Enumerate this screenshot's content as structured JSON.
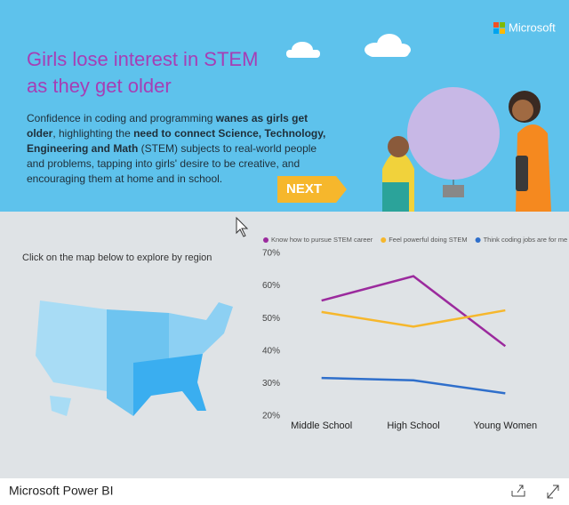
{
  "brand": "Microsoft",
  "title_lines": [
    "Girls lose interest in STEM",
    "as they get older"
  ],
  "intro": {
    "segments": [
      {
        "text": "Confidence in coding and programming ",
        "bold": false
      },
      {
        "text": "wanes as girls get older",
        "bold": true
      },
      {
        "text": ", highlighting the ",
        "bold": false
      },
      {
        "text": "need to connect Science, Technology, Engineering and Math",
        "bold": true
      },
      {
        "text": " (STEM) subjects to real-world people and problems, tapping into girls' desire to be creative, and encouraging them at home and in school.",
        "bold": false
      }
    ]
  },
  "next_button": "NEXT",
  "map_prompt": "Click on the map below to explore by region",
  "chart_data": {
    "type": "line",
    "categories": [
      "Middle School",
      "High School",
      "Young Women"
    ],
    "series": [
      {
        "name": "Know how to pursue STEM career",
        "color": "#9b2a9d",
        "values": [
          55.5,
          63,
          41.5
        ]
      },
      {
        "name": "Feel powerful doing STEM",
        "color": "#f6b72c",
        "values": [
          52,
          47.5,
          52.5
        ]
      },
      {
        "name": "Think coding jobs are for me",
        "color": "#2f6fcb",
        "values": [
          31.7,
          31,
          27
        ]
      }
    ],
    "ylim": [
      20,
      70
    ],
    "yticks": [
      {
        "value": 20,
        "label": "20%"
      },
      {
        "value": 30,
        "label": "30%"
      },
      {
        "value": 40,
        "label": "40%"
      },
      {
        "value": 50,
        "label": "50%"
      },
      {
        "value": 60,
        "label": "60%"
      },
      {
        "value": 70,
        "label": "70%"
      }
    ],
    "legend": "top"
  },
  "footer": {
    "title": "Microsoft Power BI"
  }
}
